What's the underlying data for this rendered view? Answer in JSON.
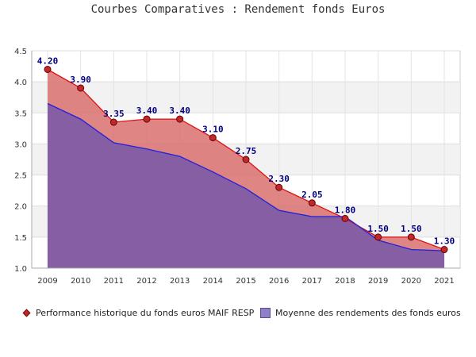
{
  "chart_data": {
    "type": "area",
    "title": "Courbes Comparatives : Rendement fonds Euros",
    "x": [
      "2009",
      "2010",
      "2011",
      "2012",
      "2013",
      "2014",
      "2015",
      "2016",
      "2017",
      "2018",
      "2019",
      "2020",
      "2021"
    ],
    "ylim": [
      1.0,
      4.5
    ],
    "yticks": [
      "1.0",
      "1.5",
      "2.0",
      "2.5",
      "3.0",
      "3.5",
      "4.0",
      "4.5"
    ],
    "grid": true,
    "legend_position": "bottom",
    "series": [
      {
        "name": "Performance historique du fonds euros MAIF RESP",
        "values": [
          4.2,
          3.9,
          3.35,
          3.4,
          3.4,
          3.1,
          2.75,
          2.3,
          2.05,
          1.8,
          1.5,
          1.5,
          1.3
        ],
        "labels": [
          "4.20",
          "3.90",
          "3.35",
          "3.40",
          "3.40",
          "3.10",
          "2.75",
          "2.30",
          "2.05",
          "1.80",
          "1.50",
          "1.50",
          "1.30"
        ],
        "line_color": "#e01010",
        "fill_color": "#d9706e",
        "marker": "diamond"
      },
      {
        "name": "Moyenne des rendements des fonds euros",
        "values": [
          3.65,
          3.4,
          3.02,
          2.92,
          2.8,
          2.55,
          2.28,
          1.93,
          1.83,
          1.83,
          1.45,
          1.3,
          1.28
        ],
        "line_color": "#2020e0",
        "fill_color": "#7b5aa6",
        "marker": "square"
      }
    ]
  }
}
